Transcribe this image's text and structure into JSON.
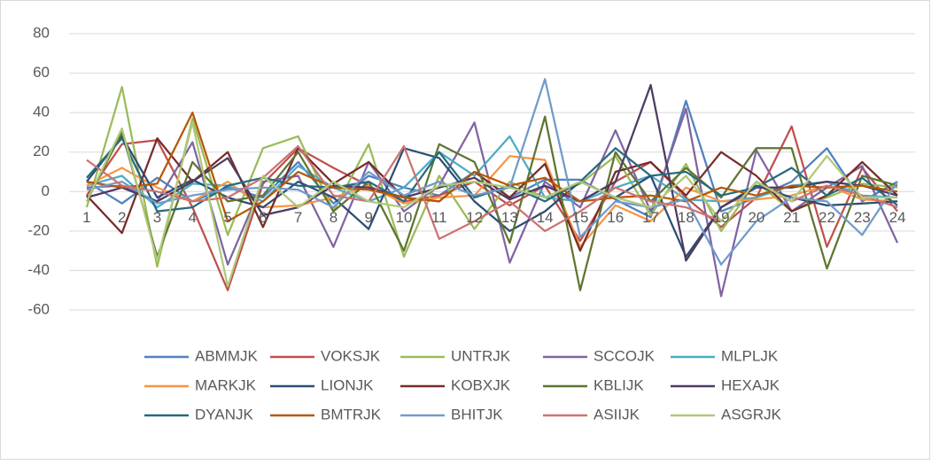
{
  "chart_data": {
    "type": "line",
    "categories": [
      1,
      2,
      3,
      4,
      5,
      6,
      7,
      8,
      9,
      10,
      11,
      12,
      13,
      14,
      15,
      16,
      17,
      18,
      19,
      20,
      21,
      22,
      23,
      24
    ],
    "ylim": [
      -60,
      80
    ],
    "yticks": [
      -60,
      -40,
      -20,
      0,
      20,
      40,
      60,
      80
    ],
    "grid": true,
    "legend": "bottom",
    "series": [
      {
        "name": "ABMMJK",
        "color": "#4f81bd",
        "values": [
          5,
          -6,
          7,
          -5,
          2,
          -3,
          15,
          -6,
          8,
          2,
          -2,
          10,
          -3,
          6,
          6,
          -4,
          -13,
          46,
          -10,
          -3,
          5,
          22,
          -5,
          5
        ]
      },
      {
        "name": "VOKSJK",
        "color": "#c0504d",
        "values": [
          -2,
          24,
          26,
          -8,
          -50,
          4,
          22,
          12,
          3,
          -5,
          -2,
          5,
          -7,
          3,
          -25,
          5,
          15,
          -3,
          -18,
          -3,
          33,
          -28,
          12,
          -10
        ]
      },
      {
        "name": "UNTRJK",
        "color": "#9bbb59",
        "values": [
          -8,
          53,
          -38,
          37,
          -22,
          22,
          28,
          -10,
          24,
          -33,
          8,
          -19,
          5,
          -3,
          4,
          18,
          -12,
          14,
          -20,
          5,
          -10,
          -3,
          4,
          2
        ]
      },
      {
        "name": "SCCOJK",
        "color": "#8064a2",
        "values": [
          2,
          3,
          -5,
          25,
          -37,
          5,
          8,
          -28,
          15,
          -10,
          3,
          35,
          -36,
          5,
          -8,
          31,
          -10,
          42,
          -53,
          21,
          -10,
          2,
          13,
          -26
        ]
      },
      {
        "name": "MLPLJK",
        "color": "#4bacc6",
        "values": [
          3,
          8,
          -8,
          4,
          3,
          -5,
          13,
          2,
          -5,
          2,
          20,
          8,
          28,
          -3,
          -5,
          2,
          8,
          -4,
          -5,
          -3,
          3,
          5,
          -2,
          -3
        ]
      },
      {
        "name": "MARKJK",
        "color": "#f79646",
        "values": [
          3,
          12,
          2,
          -5,
          5,
          -8,
          -7,
          -3,
          3,
          -6,
          -3,
          -2,
          18,
          16,
          -28,
          -7,
          -15,
          2,
          -5,
          -4,
          -2,
          3,
          -4,
          -5
        ]
      },
      {
        "name": "LIONJK",
        "color": "#2c4d75",
        "values": [
          5,
          28,
          -3,
          6,
          -3,
          -8,
          5,
          -3,
          -19,
          22,
          17,
          -5,
          -20,
          -10,
          5,
          -3,
          8,
          -33,
          -8,
          3,
          -3,
          -7,
          -6,
          -5
        ]
      },
      {
        "name": "KOBXJK",
        "color": "#772c2a",
        "values": [
          -2,
          -21,
          27,
          5,
          20,
          -18,
          22,
          4,
          15,
          -3,
          -5,
          10,
          -3,
          14,
          -30,
          10,
          15,
          -2,
          20,
          8,
          -10,
          -2,
          15,
          -2
        ]
      },
      {
        "name": "KBLIJK",
        "color": "#5f7530",
        "values": [
          -5,
          30,
          -33,
          15,
          -5,
          -2,
          20,
          -10,
          5,
          -30,
          24,
          15,
          -26,
          38,
          -50,
          20,
          -5,
          12,
          -3,
          22,
          22,
          -39,
          8,
          3
        ]
      },
      {
        "name": "HEXAJK",
        "color": "#4d3b62",
        "values": [
          -3,
          2,
          -5,
          5,
          17,
          -12,
          -8,
          3,
          2,
          -3,
          2,
          7,
          -4,
          3,
          -5,
          5,
          54,
          -35,
          -8,
          2,
          2,
          5,
          3,
          -2
        ]
      },
      {
        "name": "DYANJK",
        "color": "#276a7c",
        "values": [
          7,
          27,
          -10,
          -8,
          3,
          7,
          3,
          2,
          5,
          -5,
          20,
          -3,
          3,
          -5,
          5,
          22,
          8,
          10,
          -2,
          2,
          12,
          -2,
          7,
          -7
        ]
      },
      {
        "name": "BMTRJK",
        "color": "#b65708",
        "values": [
          5,
          2,
          4,
          40,
          -15,
          -5,
          10,
          2,
          1,
          -3,
          -5,
          10,
          3,
          7,
          -5,
          -3,
          -2,
          -5,
          2,
          -2,
          3,
          2,
          3,
          0
        ]
      },
      {
        "name": "BHITJK",
        "color": "#729aca",
        "values": [
          1,
          5,
          -6,
          -2,
          1,
          2,
          1,
          -8,
          10,
          -2,
          5,
          -2,
          2,
          57,
          -23,
          -5,
          -8,
          -4,
          -37,
          -15,
          -3,
          -5,
          -22,
          5
        ]
      },
      {
        "name": "ASIIJK",
        "color": "#cd7371",
        "values": [
          16,
          3,
          0,
          -5,
          -3,
          7,
          23,
          -2,
          -5,
          23,
          -24,
          -15,
          -5,
          -20,
          -10,
          2,
          -5,
          -8,
          -15,
          5,
          -5,
          3,
          -2,
          -8
        ]
      },
      {
        "name": "ASGRJK",
        "color": "#afc97a",
        "values": [
          -5,
          32,
          -35,
          35,
          -48,
          8,
          -8,
          5,
          -5,
          -8,
          3,
          5,
          2,
          -3,
          5,
          -3,
          -8,
          8,
          -15,
          5,
          -5,
          18,
          -3,
          -3
        ]
      }
    ]
  }
}
